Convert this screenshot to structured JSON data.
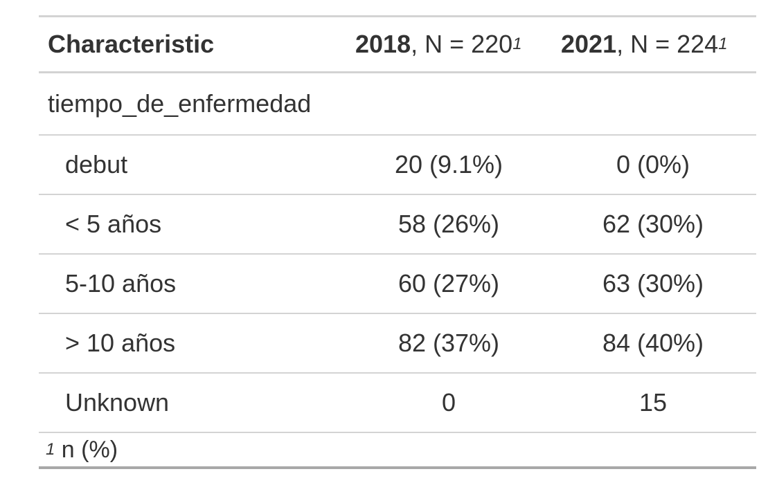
{
  "table": {
    "header": {
      "characteristic": "Characteristic",
      "col_2018_year": "2018",
      "col_2018_rest": ", N = 220",
      "col_2021_year": "2021",
      "col_2021_rest": ", N = 224",
      "footnote_marker": "1"
    },
    "group_label": "tiempo_de_enfermedad",
    "rows": [
      {
        "label": "debut",
        "v2018": "20 (9.1%)",
        "v2021": "0 (0%)"
      },
      {
        "label": "< 5 años",
        "v2018": "58 (26%)",
        "v2021": "62 (30%)"
      },
      {
        "label": "5-10 años",
        "v2018": "60 (27%)",
        "v2021": "63 (30%)"
      },
      {
        "label": "> 10 años",
        "v2018": "82 (37%)",
        "v2021": "84 (40%)"
      },
      {
        "label": "Unknown",
        "v2018": "0",
        "v2021": "15"
      }
    ],
    "footnote": {
      "marker": "1",
      "text": " n (%)"
    }
  }
}
